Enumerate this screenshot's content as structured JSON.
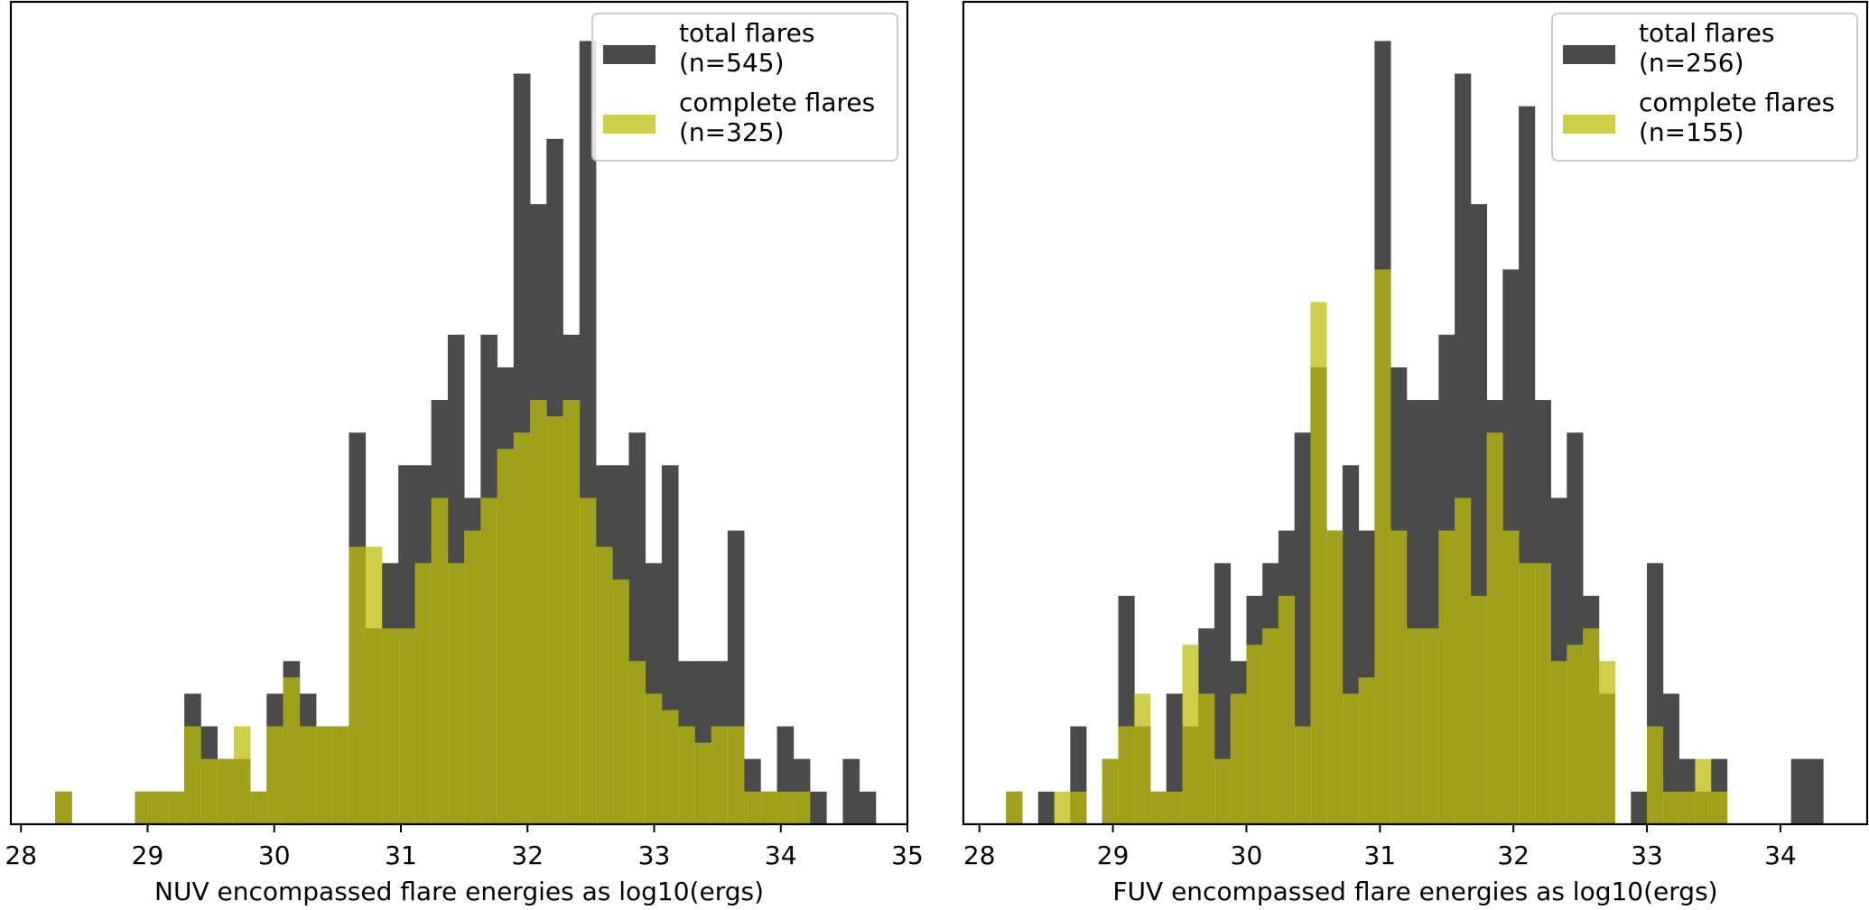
{
  "colors": {
    "total": "#4a4a4a",
    "complete": "#bdbd0e",
    "axis": "#000000",
    "legend_border": "#cccccc"
  },
  "chart_data": [
    {
      "type": "bar",
      "name": "nuv",
      "xlabel": "NUV encompassed flare energies as log10(ergs)",
      "ylabel": "",
      "xlim": [
        27.92,
        35.0
      ],
      "ylim": [
        0,
        25.2
      ],
      "xticks": [
        "28",
        "29",
        "30",
        "31",
        "32",
        "33",
        "34",
        "35"
      ],
      "legend": [
        {
          "label": "total flares",
          "count": "(n=545)"
        },
        {
          "label": "complete flares",
          "count": "(n=325)"
        }
      ],
      "series": [
        {
          "name": "total flares",
          "bins": [
            [
              28.27,
              28.4,
              1
            ],
            [
              28.9,
              29.03,
              1
            ],
            [
              29.03,
              29.16,
              1
            ],
            [
              29.16,
              29.29,
              1
            ],
            [
              29.29,
              29.42,
              4
            ],
            [
              29.42,
              29.55,
              3
            ],
            [
              29.55,
              29.68,
              2
            ],
            [
              29.68,
              29.81,
              2
            ],
            [
              29.81,
              29.94,
              1
            ],
            [
              29.94,
              30.07,
              4
            ],
            [
              30.07,
              30.2,
              5
            ],
            [
              30.2,
              30.33,
              4
            ],
            [
              30.33,
              30.46,
              3
            ],
            [
              30.46,
              30.59,
              3
            ],
            [
              30.59,
              30.72,
              12
            ],
            [
              30.72,
              30.85,
              6
            ],
            [
              30.85,
              30.98,
              8
            ],
            [
              30.98,
              31.11,
              11
            ],
            [
              31.11,
              31.24,
              11
            ],
            [
              31.24,
              31.37,
              13
            ],
            [
              31.37,
              31.5,
              15
            ],
            [
              31.5,
              31.63,
              10
            ],
            [
              31.63,
              31.76,
              15
            ],
            [
              31.76,
              31.89,
              14
            ],
            [
              31.89,
              32.02,
              23
            ],
            [
              32.02,
              32.15,
              19
            ],
            [
              32.15,
              32.28,
              21
            ],
            [
              32.28,
              32.41,
              15
            ],
            [
              32.41,
              32.54,
              24
            ],
            [
              32.54,
              32.67,
              11
            ],
            [
              32.67,
              32.8,
              11
            ],
            [
              32.8,
              32.93,
              12
            ],
            [
              32.93,
              33.06,
              8
            ],
            [
              33.06,
              33.19,
              11
            ],
            [
              33.19,
              33.32,
              5
            ],
            [
              33.32,
              33.45,
              5
            ],
            [
              33.45,
              33.58,
              5
            ],
            [
              33.58,
              33.71,
              9
            ],
            [
              33.71,
              33.84,
              2
            ],
            [
              33.84,
              33.97,
              1
            ],
            [
              33.97,
              34.1,
              3
            ],
            [
              34.1,
              34.23,
              2
            ],
            [
              34.23,
              34.36,
              1
            ],
            [
              34.36,
              34.49,
              0
            ],
            [
              34.49,
              34.62,
              2
            ],
            [
              34.62,
              34.75,
              1
            ]
          ]
        },
        {
          "name": "complete flares",
          "bins": [
            [
              28.27,
              28.4,
              1
            ],
            [
              28.9,
              29.03,
              1
            ],
            [
              29.03,
              29.16,
              1
            ],
            [
              29.16,
              29.29,
              1
            ],
            [
              29.29,
              29.42,
              3
            ],
            [
              29.42,
              29.55,
              2
            ],
            [
              29.55,
              29.68,
              2
            ],
            [
              29.68,
              29.81,
              3
            ],
            [
              29.81,
              29.94,
              1
            ],
            [
              29.94,
              30.07,
              3
            ],
            [
              30.07,
              30.2,
              4.5
            ],
            [
              30.2,
              30.33,
              3
            ],
            [
              30.33,
              30.46,
              3
            ],
            [
              30.46,
              30.59,
              3
            ],
            [
              30.59,
              30.72,
              8.5
            ],
            [
              30.72,
              30.85,
              8.5
            ],
            [
              30.85,
              30.98,
              6
            ],
            [
              30.98,
              31.11,
              6
            ],
            [
              31.11,
              31.24,
              8
            ],
            [
              31.24,
              31.37,
              10
            ],
            [
              31.37,
              31.5,
              8
            ],
            [
              31.5,
              31.63,
              9
            ],
            [
              31.63,
              31.76,
              10
            ],
            [
              31.76,
              31.89,
              11.5
            ],
            [
              31.89,
              32.02,
              12
            ],
            [
              32.02,
              32.15,
              13
            ],
            [
              32.15,
              32.28,
              12.5
            ],
            [
              32.28,
              32.41,
              13
            ],
            [
              32.41,
              32.54,
              10
            ],
            [
              32.54,
              32.67,
              8.5
            ],
            [
              32.67,
              32.8,
              7.5
            ],
            [
              32.8,
              32.93,
              5
            ],
            [
              32.93,
              33.06,
              4
            ],
            [
              33.06,
              33.19,
              3.5
            ],
            [
              33.19,
              33.32,
              3
            ],
            [
              33.32,
              33.45,
              2.5
            ],
            [
              33.45,
              33.58,
              3
            ],
            [
              33.58,
              33.71,
              3
            ],
            [
              33.71,
              33.84,
              1
            ],
            [
              33.84,
              33.97,
              1
            ],
            [
              33.97,
              34.1,
              1
            ],
            [
              34.1,
              34.23,
              1
            ]
          ]
        }
      ]
    },
    {
      "type": "bar",
      "name": "fuv",
      "xlabel": "FUV encompassed flare energies as log10(ergs)",
      "ylabel": "",
      "xlim": [
        27.88,
        34.65
      ],
      "ylim": [
        0,
        25.2
      ],
      "xticks": [
        "28",
        "29",
        "30",
        "31",
        "32",
        "33",
        "34"
      ],
      "legend": [
        {
          "label": "total flares",
          "count": "(n=256)"
        },
        {
          "label": "complete flares",
          "count": "(n=155)"
        }
      ],
      "series": [
        {
          "name": "total flares",
          "bins": [
            [
              28.2,
              28.32,
              1
            ],
            [
              28.44,
              28.56,
              1
            ],
            [
              28.68,
              28.8,
              3
            ],
            [
              28.92,
              29.04,
              2
            ],
            [
              29.04,
              29.16,
              7
            ],
            [
              29.16,
              29.28,
              3
            ],
            [
              29.28,
              29.4,
              1
            ],
            [
              29.4,
              29.52,
              4
            ],
            [
              29.52,
              29.64,
              3
            ],
            [
              29.64,
              29.76,
              6
            ],
            [
              29.76,
              29.88,
              8
            ],
            [
              29.88,
              30.0,
              5
            ],
            [
              30.0,
              30.12,
              7
            ],
            [
              30.12,
              30.24,
              8
            ],
            [
              30.24,
              30.36,
              9
            ],
            [
              30.36,
              30.48,
              12
            ],
            [
              30.48,
              30.6,
              14
            ],
            [
              30.6,
              30.72,
              9
            ],
            [
              30.72,
              30.84,
              11
            ],
            [
              30.84,
              30.96,
              9
            ],
            [
              30.96,
              31.08,
              24
            ],
            [
              31.08,
              31.2,
              14
            ],
            [
              31.2,
              31.32,
              13
            ],
            [
              31.32,
              31.44,
              13
            ],
            [
              31.44,
              31.56,
              15
            ],
            [
              31.56,
              31.68,
              23
            ],
            [
              31.68,
              31.8,
              19
            ],
            [
              31.8,
              31.92,
              13
            ],
            [
              31.92,
              32.04,
              17
            ],
            [
              32.04,
              32.16,
              22
            ],
            [
              32.16,
              32.28,
              13
            ],
            [
              32.28,
              32.4,
              10
            ],
            [
              32.4,
              32.52,
              12
            ],
            [
              32.52,
              32.64,
              7
            ],
            [
              32.64,
              32.76,
              4
            ],
            [
              32.88,
              33.0,
              1
            ],
            [
              33.0,
              33.12,
              8
            ],
            [
              33.12,
              33.24,
              4
            ],
            [
              33.24,
              33.36,
              2
            ],
            [
              33.36,
              33.48,
              1
            ],
            [
              33.48,
              33.6,
              2
            ],
            [
              34.08,
              34.32,
              2
            ]
          ]
        },
        {
          "name": "complete flares",
          "bins": [
            [
              28.2,
              28.32,
              1
            ],
            [
              28.56,
              28.68,
              1
            ],
            [
              28.68,
              28.8,
              1
            ],
            [
              28.92,
              29.04,
              2
            ],
            [
              29.04,
              29.16,
              3
            ],
            [
              29.16,
              29.28,
              4
            ],
            [
              29.28,
              29.4,
              1
            ],
            [
              29.4,
              29.52,
              1
            ],
            [
              29.52,
              29.64,
              5.5
            ],
            [
              29.64,
              29.76,
              4
            ],
            [
              29.76,
              29.88,
              2
            ],
            [
              29.88,
              30.0,
              4
            ],
            [
              30.0,
              30.12,
              5.5
            ],
            [
              30.12,
              30.24,
              6
            ],
            [
              30.24,
              30.36,
              7
            ],
            [
              30.36,
              30.48,
              3
            ],
            [
              30.48,
              30.6,
              16
            ],
            [
              30.6,
              30.72,
              9
            ],
            [
              30.72,
              30.84,
              4
            ],
            [
              30.84,
              30.96,
              4.5
            ],
            [
              30.96,
              31.08,
              17
            ],
            [
              31.08,
              31.2,
              9
            ],
            [
              31.2,
              31.32,
              6
            ],
            [
              31.32,
              31.44,
              6
            ],
            [
              31.44,
              31.56,
              9
            ],
            [
              31.56,
              31.68,
              10
            ],
            [
              31.68,
              31.8,
              7
            ],
            [
              31.8,
              31.92,
              12
            ],
            [
              31.92,
              32.04,
              9
            ],
            [
              32.04,
              32.16,
              8
            ],
            [
              32.16,
              32.28,
              8
            ],
            [
              32.28,
              32.4,
              5
            ],
            [
              32.4,
              32.52,
              5.5
            ],
            [
              32.52,
              32.64,
              6
            ],
            [
              32.64,
              32.76,
              5
            ],
            [
              32.88,
              33.0,
              0
            ],
            [
              33.0,
              33.12,
              3
            ],
            [
              33.12,
              33.24,
              1
            ],
            [
              33.24,
              33.36,
              1
            ],
            [
              33.36,
              33.48,
              2
            ],
            [
              33.48,
              33.6,
              1
            ]
          ]
        }
      ]
    }
  ]
}
